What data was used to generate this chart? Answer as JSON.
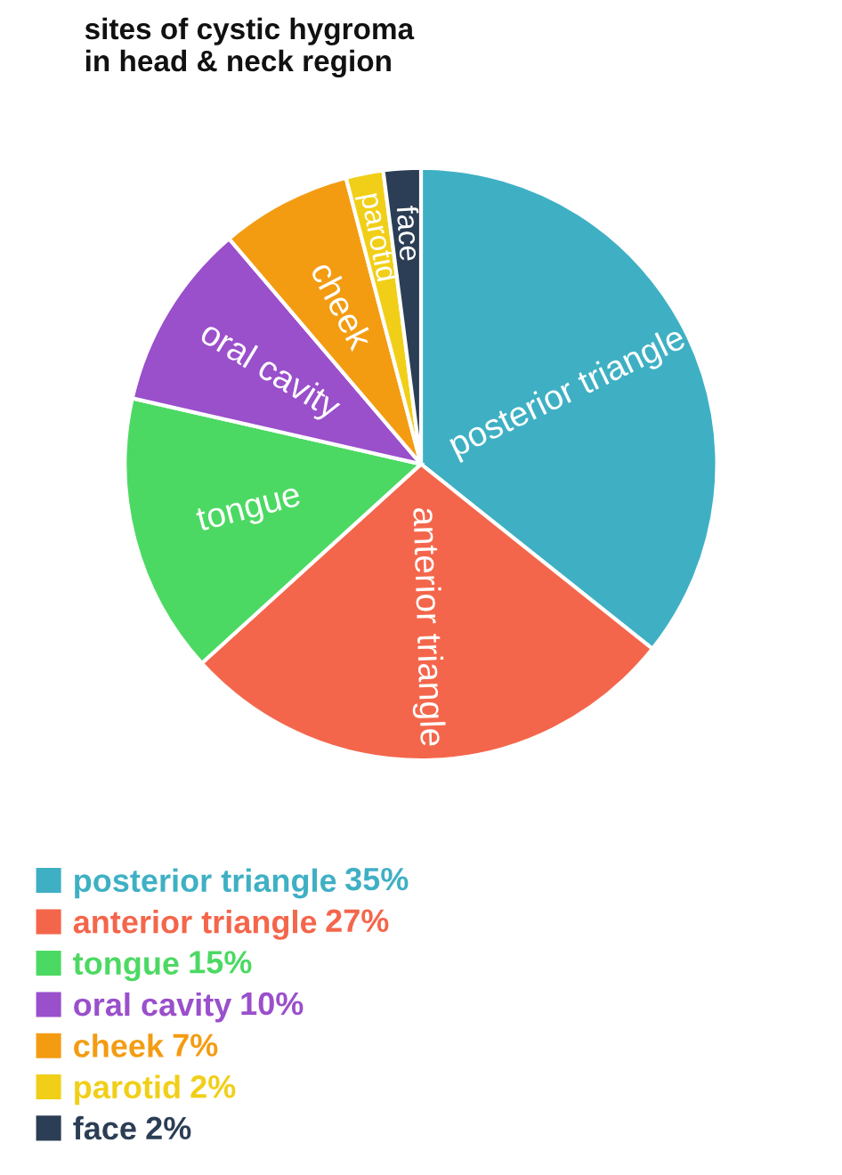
{
  "chart_data": {
    "type": "pie",
    "title": "sites of cystic hygroma\nin head & neck region",
    "categories": [
      "posterior triangle",
      "anterior triangle",
      "tongue",
      "oral cavity",
      "cheek",
      "parotid",
      "face"
    ],
    "values": [
      35,
      27,
      15,
      10,
      7,
      2,
      2
    ],
    "value_labels": [
      "35%",
      "27%",
      "15%",
      "10%",
      "7%",
      "2%",
      "2%"
    ],
    "colors": [
      "#3fb0c4",
      "#f4664b",
      "#4cd963",
      "#9a4fcb",
      "#f39c12",
      "#f1cf18",
      "#2c3e55"
    ],
    "legend": "bottom left"
  }
}
